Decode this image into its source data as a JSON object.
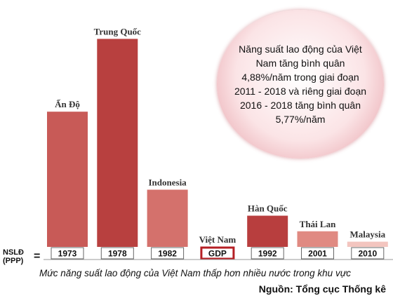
{
  "chart_data": {
    "type": "bar",
    "categories": [
      "Ấn Độ",
      "Trung Quốc",
      "Indonesia",
      "Việt Nam",
      "Hàn Quốc",
      "Thái Lan",
      "Malaysia"
    ],
    "year_tags": [
      "1973",
      "1978",
      "1982",
      "GDP",
      "1992",
      "2001",
      "2010"
    ],
    "values": [
      26,
      40,
      11,
      0,
      6,
      3,
      1
    ],
    "ylim": [
      0,
      41
    ],
    "ylabel_line1": "NSLĐ",
    "ylabel_line2": "(PPP)",
    "ylabel_eq": "=",
    "bar_colors": [
      "#c85a57",
      "#b8403f",
      "#d4716c",
      "#ffffff",
      "#b83e3e",
      "#e08a82",
      "#f3c5bf"
    ],
    "highlight_color": "#b51f24",
    "caption": "Mức năng suất lao động của Việt Nam thấp hơn nhiều nước trong khu vực",
    "source": "Nguồn: Tổng cục Thống kê",
    "callout": "Năng suất lao động của Việt Nam tăng bình quân 4,88%/năm trong giai đoạn 2011 - 2018 và riêng giai đoạn 2016 - 2018 tăng bình quân 5,77%/năm"
  }
}
